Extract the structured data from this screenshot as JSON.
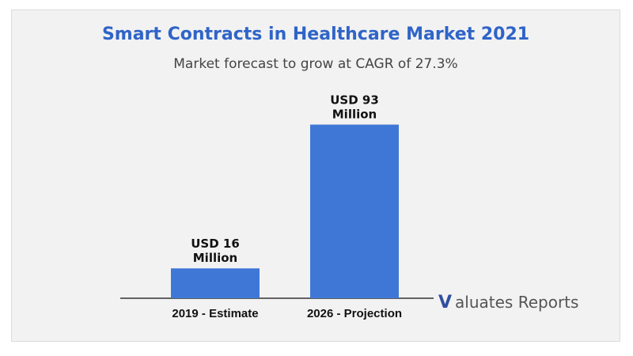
{
  "header": {
    "title": "Smart Contracts in Healthcare Market 2021",
    "subtitle": "Market forecast to grow at CAGR of 27.3%"
  },
  "brand": {
    "mark": "V",
    "name": "aluates",
    "suffix": "Reports"
  },
  "colors": {
    "title": "#2f64c8",
    "bar": "#3f77d6",
    "background": "#f2f2f2"
  },
  "chart_data": {
    "type": "bar",
    "categories": [
      "2019 - Estimate",
      "2026 - Projection"
    ],
    "values": [
      16,
      93
    ],
    "data_labels": [
      [
        "USD 16",
        "Million"
      ],
      [
        "USD 93",
        "Million"
      ]
    ],
    "ylim": [
      0,
      100
    ],
    "grid": false,
    "legend": "none"
  }
}
